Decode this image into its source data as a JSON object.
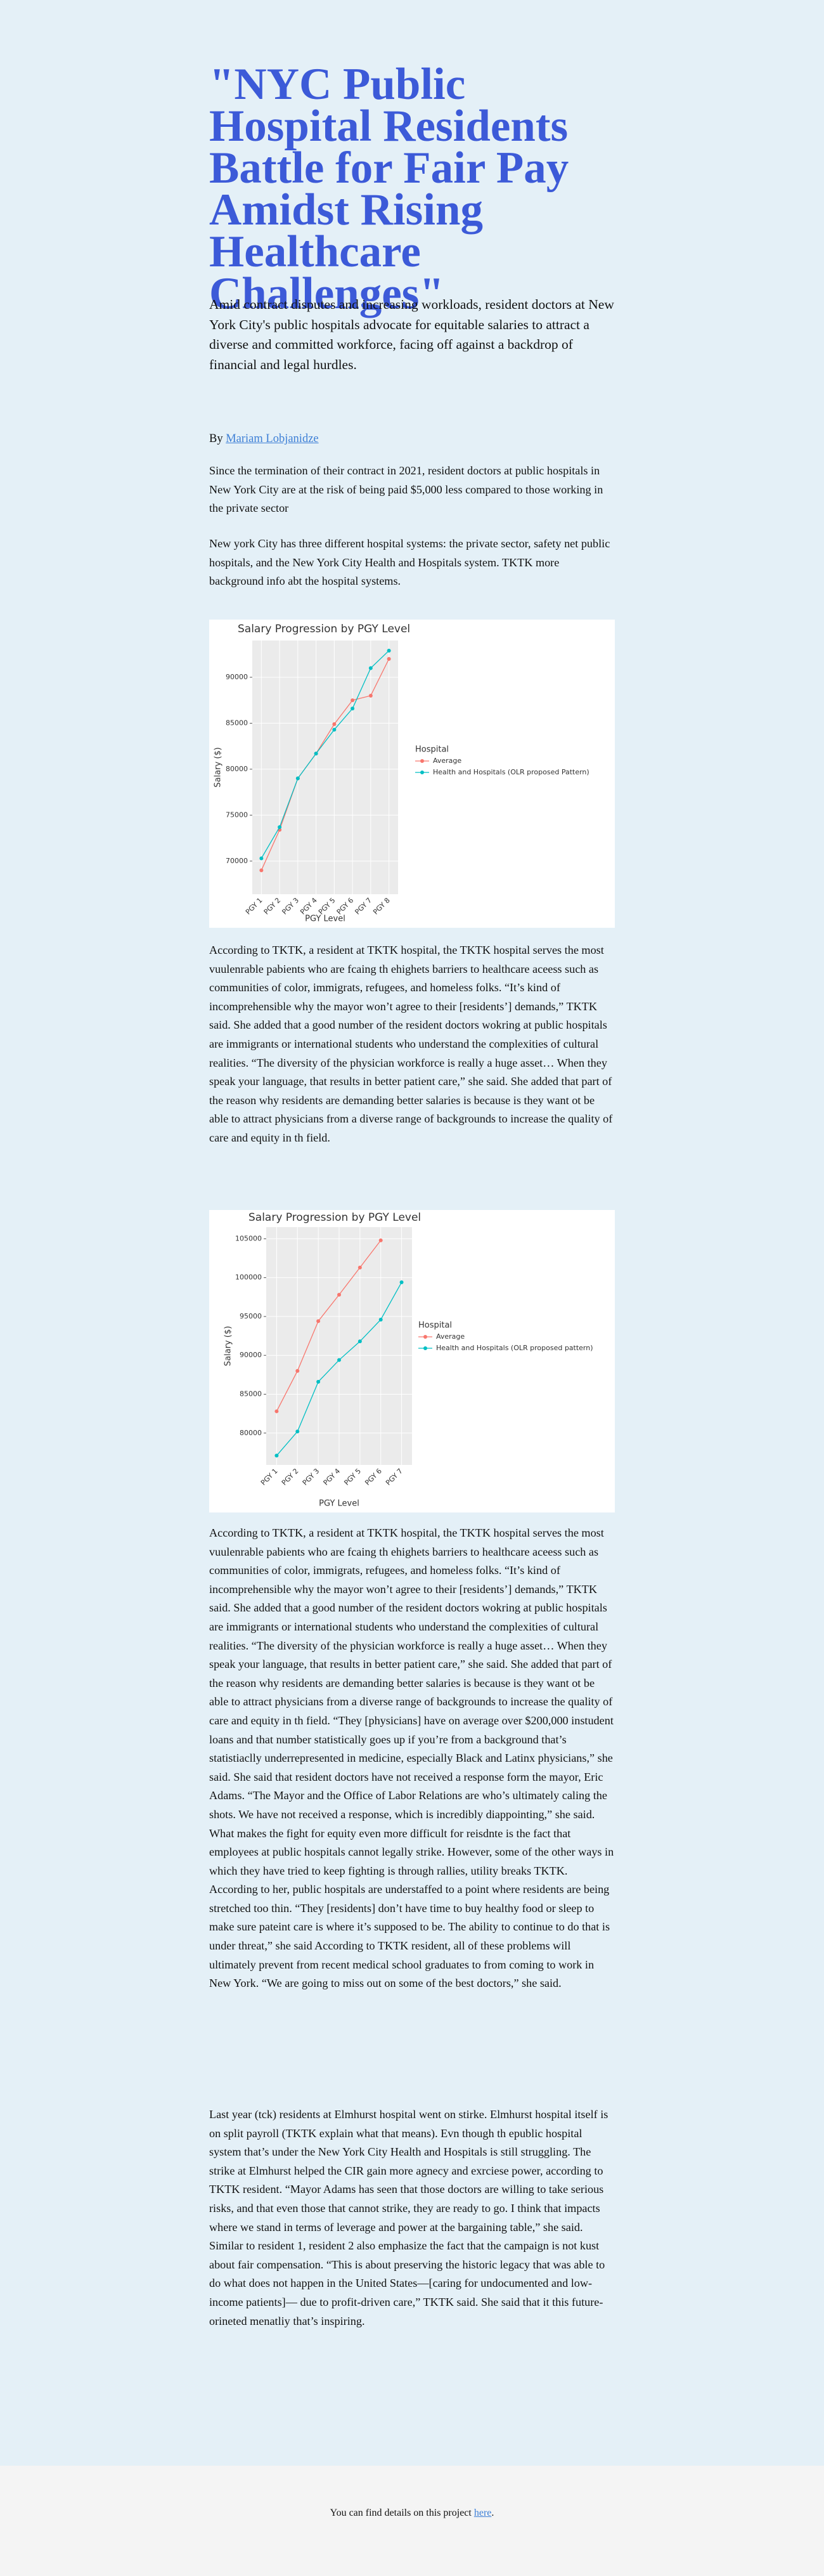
{
  "article": {
    "title": "\"NYC Public Hospital Residents Battle for Fair Pay Amidst Rising Healthcare Challenges\"",
    "subtitle": "Amid contract disputes and increasing workloads, resident doctors at New York City's public hospitals advocate for equitable salaries to attract a diverse and committed workforce, facing off against a backdrop of financial and legal hurdles.",
    "byline": {
      "prefix": "By",
      "author": "Mariam Lobjanidze"
    },
    "paragraphs": [
      "Since the termination of their contract in 2021, resident doctors at public hospitals in New York City are at the risk of being paid $5,000 less compared to those working in the private sector",
      "New york City has three different hospital systems: the private sector, safety net public hospitals, and the New York City Health and Hospitals system. TKTK more background info abt the hospital systems.",
      "According to TKTK, a resident at TKTK hospital, the TKTK hospital serves the most vuulenrable pabients who are fcaing th ehighets barriers to healthcare aceess such as communities of color, immigrats, refugees, and homeless folks. “It’s kind of incomprehensible why the mayor won’t agree to their [residents’] demands,” TKTK said. She added that a good number of the resident doctors wokring at public hospitals are immigrants or international students who understand the complexities of cultural realities. “The diversity of the physician workforce is really a huge asset… When they speak your language, that results in better patient care,” she said. She added that part of the reason why residents are demanding better salaries is because is they want ot be able to attract physicians from a diverse range of backgrounds to increase the quality of care and equity in th field.",
      "According to TKTK, a resident at TKTK hospital, the TKTK hospital serves the most vuulenrable pabients who are fcaing th ehighets barriers to healthcare aceess such as communities of color, immigrats, refugees, and homeless folks. “It’s kind of incomprehensible why the mayor won’t agree to their [residents’] demands,” TKTK said. She added that a good number of the resident doctors wokring at public hospitals are immigrants or international students who understand the complexities of cultural realities. “The diversity of the physician workforce is really a huge asset… When they speak your language, that results in better patient care,” she said. She added that part of the reason why residents are demanding better salaries is because is they want ot be able to attract physicians from a diverse range of backgrounds to increase the quality of care and equity in th field. “They [physicians] have on average over $200,000 instudent loans and that number statistically goes up if you’re from a background that’s statistiaclly underrepresented in medicine, especially Black and Latinx physicians,” she said. She said that resident doctors have not received a response form the mayor, Eric Adams. “The Mayor and the Office of Labor Relations are who’s ultimately caling the shots. We have not received a response, which is incredibly diappointing,” she said. What makes the fight for equity even more difficult for reisdnte is the fact that employees at public hospitals cannot legally strike. However, some of the other ways in which they have tried to keep fighting is through rallies, utility breaks TKTK. According to her, public hospitals are understaffed to a point where residents are being stretched too thin. “They [residents] don’t have time to buy healthy food or sleep to make sure pateint care is where it’s supposed to be. The ability to continue to do that is under threat,” she said According to TKTK resident, all of these problems will ultimately prevent from recent medical school graduates to from coming to work in New York. “We are going to miss out on some of the best doctors,” she said.",
      "Last year (tck) residents at Elmhurst hospital went on stirke. Elmhurst hospital itself is on split payroll (TKTK explain what that means). Evn though th epublic hospital system that’s under the New York City Health and Hospitals is still struggling. The strike at Elmhurst helped the CIR gain more agnecy and exrciese power, according to TKTK resident. “Mayor Adams has seen that those doctors are willing to take serious risks, and that even those that cannot strike, they are ready to go. I think that impacts where we stand in terms of leverage and power at the bargaining table,” she said. Similar to resident 1, resident 2 also emphasize the fact that the campaign is not kust about fair compensation. “This is about preserving the historic legacy that was able to do what does not happen in the United States—[caring for undocumented and low-income patients]— due to profit-driven care,” TKTK said. She said that it this future-orineted menatliy that’s inspiring."
    ]
  },
  "footer": {
    "text": "You can find details on this project",
    "link": "here",
    "end": "."
  },
  "chart_data": [
    {
      "type": "line",
      "title": "Salary Progression by PGY Level",
      "xlabel": "PGY Level",
      "ylabel": "Salary ($)",
      "legend_title": "Hospital",
      "legend": "right",
      "grid": true,
      "categories": [
        "PGY 1",
        "PGY 2",
        "PGY 3",
        "PGY 4",
        "PGY 5",
        "PGY 6",
        "PGY 7",
        "PGY 8"
      ],
      "series": [
        {
          "name": "Average",
          "color": "#F8766D",
          "values": [
            69000,
            73400,
            79000,
            81700,
            84900,
            87500,
            88000,
            92000
          ]
        },
        {
          "name": "Health and Hospitals (OLR proposed Pattern)",
          "color": "#00BFC4",
          "values": [
            70300,
            73700,
            79000,
            81700,
            84300,
            86600,
            91000,
            92900
          ]
        }
      ],
      "ylim": [
        66400,
        94000
      ],
      "yticks": [
        70000,
        75000,
        80000,
        85000,
        90000
      ]
    },
    {
      "type": "line",
      "title": "Salary Progression by PGY Level",
      "xlabel": "PGY Level",
      "ylabel": "Salary ($)",
      "legend_title": "Hospital",
      "legend": "right",
      "grid": true,
      "categories": [
        "PGY 1",
        "PGY 2",
        "PGY 3",
        "PGY 4",
        "PGY 5",
        "PGY 6",
        "PGY 7"
      ],
      "series": [
        {
          "name": "Average",
          "color": "#F8766D",
          "values": [
            82800,
            88000,
            94400,
            97800,
            101300,
            104800,
            null
          ]
        },
        {
          "name": "Health and Hospitals (OLR proposed pattern)",
          "color": "#00BFC4",
          "values": [
            77100,
            80200,
            86600,
            89400,
            91800,
            94600,
            99400
          ]
        }
      ],
      "ylim": [
        75900,
        106500
      ],
      "yticks": [
        80000,
        85000,
        90000,
        95000,
        100000,
        105000
      ]
    }
  ]
}
